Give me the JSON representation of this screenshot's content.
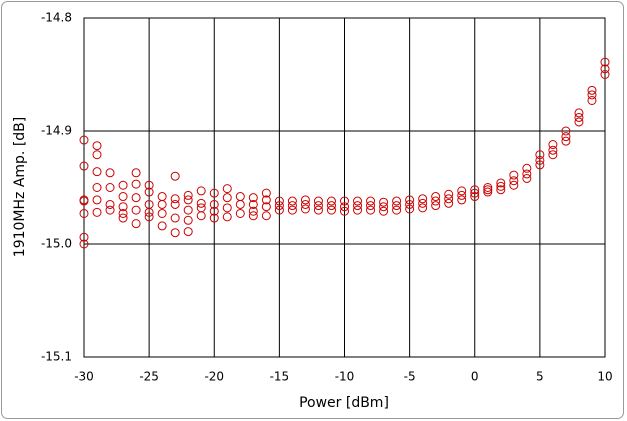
{
  "chart_data": {
    "type": "scatter",
    "x_label": "Power [dBm]",
    "y_label": "1910MHz Amp. [dB]",
    "color": "#cc0000",
    "grid": true,
    "xlim": [
      -30,
      10
    ],
    "xticks": [
      -30,
      -25,
      -20,
      -15,
      -10,
      -5,
      0,
      5,
      10
    ],
    "ylim": [
      -15.1,
      -14.8
    ],
    "yticks": [
      -15.1,
      {
        "value": -15,
        "label": "-15.0"
      },
      -14.9,
      -14.8
    ],
    "x": [
      -30,
      -30,
      -30,
      -30,
      -30,
      -30,
      -30,
      -29,
      -29,
      -29,
      -29,
      -29,
      -29,
      -28,
      -28,
      -28,
      -28,
      -27,
      -27,
      -27,
      -27,
      -27,
      -26,
      -26,
      -26,
      -26,
      -26,
      -25,
      -25,
      -25,
      -25,
      -25,
      -24,
      -24,
      -24,
      -24,
      -23,
      -23,
      -23,
      -23,
      -23,
      -22,
      -22,
      -22,
      -22,
      -22,
      -21,
      -21,
      -21,
      -21,
      -20,
      -20,
      -20,
      -20,
      -19,
      -19,
      -19,
      -19,
      -18,
      -18,
      -18,
      -17,
      -17,
      -17,
      -17,
      -16,
      -16,
      -16,
      -16,
      -15,
      -15,
      -15,
      -14,
      -14,
      -14,
      -13,
      -13,
      -13,
      -12,
      -12,
      -12,
      -11,
      -11,
      -11,
      -10,
      -10,
      -10,
      -9,
      -9,
      -9,
      -8,
      -8,
      -8,
      -7,
      -7,
      -7,
      -6,
      -6,
      -6,
      -5,
      -5,
      -5,
      -4,
      -4,
      -4,
      -3,
      -3,
      -3,
      -2,
      -2,
      -2,
      -1,
      -1,
      -1,
      0,
      0,
      0,
      1,
      1,
      1,
      2,
      2,
      2,
      3,
      3,
      3,
      4,
      4,
      4,
      5,
      5,
      5,
      6,
      6,
      6,
      7,
      7,
      7,
      8,
      8,
      8,
      9,
      9,
      9,
      10,
      10,
      10
    ],
    "values": [
      -14.908,
      -14.931,
      -14.961,
      -14.962,
      -14.973,
      -14.994,
      -15.0,
      -14.913,
      -14.921,
      -14.936,
      -14.95,
      -14.961,
      -14.972,
      -14.937,
      -14.95,
      -14.965,
      -14.97,
      -14.948,
      -14.958,
      -14.967,
      -14.973,
      -14.977,
      -14.937,
      -14.947,
      -14.959,
      -14.97,
      -14.982,
      -14.948,
      -14.954,
      -14.965,
      -14.972,
      -14.976,
      -14.958,
      -14.965,
      -14.973,
      -14.984,
      -14.94,
      -14.96,
      -14.965,
      -14.977,
      -14.99,
      -14.957,
      -14.961,
      -14.97,
      -14.979,
      -14.989,
      -14.953,
      -14.964,
      -14.968,
      -14.975,
      -14.955,
      -14.965,
      -14.971,
      -14.977,
      -14.951,
      -14.959,
      -14.968,
      -14.976,
      -14.958,
      -14.965,
      -14.973,
      -14.959,
      -14.965,
      -14.971,
      -14.975,
      -14.955,
      -14.961,
      -14.967,
      -14.975,
      -14.962,
      -14.966,
      -14.97,
      -14.962,
      -14.966,
      -14.97,
      -14.961,
      -14.965,
      -14.969,
      -14.962,
      -14.966,
      -14.97,
      -14.962,
      -14.966,
      -14.97,
      -14.962,
      -14.967,
      -14.971,
      -14.962,
      -14.966,
      -14.97,
      -14.962,
      -14.966,
      -14.97,
      -14.963,
      -14.967,
      -14.971,
      -14.962,
      -14.966,
      -14.97,
      -14.961,
      -14.965,
      -14.969,
      -14.96,
      -14.964,
      -14.968,
      -14.958,
      -14.962,
      -14.966,
      -14.956,
      -14.96,
      -14.964,
      -14.953,
      -14.957,
      -14.961,
      -14.952,
      -14.955,
      -14.958,
      -14.95,
      -14.952,
      -14.954,
      -14.946,
      -14.949,
      -14.952,
      -14.939,
      -14.944,
      -14.948,
      -14.933,
      -14.938,
      -14.942,
      -14.921,
      -14.926,
      -14.93,
      -14.912,
      -14.917,
      -14.921,
      -14.9,
      -14.905,
      -14.909,
      -14.884,
      -14.888,
      -14.892,
      -14.864,
      -14.868,
      -14.873,
      -14.839,
      -14.845,
      -14.85
    ]
  }
}
